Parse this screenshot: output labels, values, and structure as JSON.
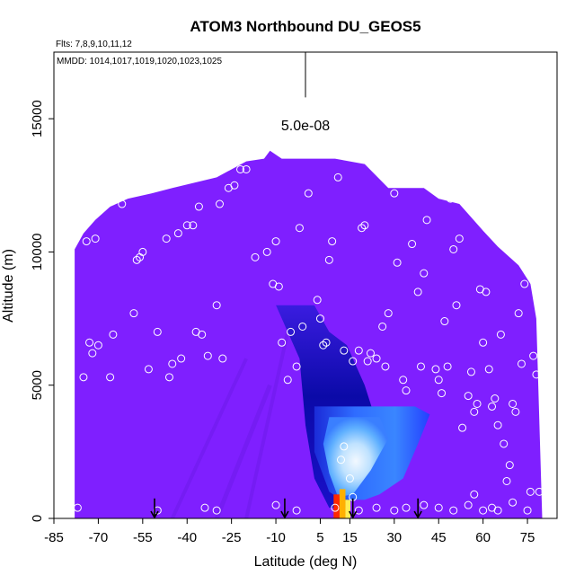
{
  "chart_data": {
    "type": "heatmap",
    "title": "ATOM3 Northbound DU_GEOS5",
    "subtitle_flights": "Flts: 7,8,9,10,11,12",
    "subtitle_dates": "MMDD: 1014,1017,1019,1020,1023,1025",
    "xlabel": "Latitude (deg N)",
    "ylabel": "Altitude (m)",
    "xlim": [
      -85,
      85
    ],
    "ylim": [
      0,
      17500
    ],
    "xticks": [
      -85,
      -70,
      -55,
      -40,
      -25,
      -10,
      5,
      15,
      30,
      45,
      60,
      75
    ],
    "yticks": [
      0,
      5000,
      10000,
      15000
    ],
    "scale_label": "5.0e-08",
    "scale_bar_top": 17500,
    "scale_bar_bottom": 15800,
    "background_color": "#7f1fff",
    "curtain_top": [
      [
        -78,
        10100
      ],
      [
        -75,
        10700
      ],
      [
        -71,
        11200
      ],
      [
        -66,
        11700
      ],
      [
        -60,
        12000
      ],
      [
        -52,
        12200
      ],
      [
        -45,
        12400
      ],
      [
        -30,
        12800
      ],
      [
        -20,
        13400
      ],
      [
        -14,
        13500
      ],
      [
        -12,
        13800
      ],
      [
        -8,
        13500
      ],
      [
        10,
        13500
      ],
      [
        20,
        13300
      ],
      [
        28,
        12400
      ],
      [
        40,
        12400
      ],
      [
        45,
        12000
      ],
      [
        52,
        11800
      ],
      [
        60,
        10800
      ],
      [
        65,
        10200
      ],
      [
        72,
        9500
      ],
      [
        76,
        8800
      ],
      [
        78,
        7500
      ],
      [
        80,
        0
      ]
    ],
    "features": {
      "dark_tongue": [
        [
          -10,
          8000
        ],
        [
          3,
          8000
        ],
        [
          8,
          7000
        ],
        [
          14,
          6500
        ],
        [
          20,
          5000
        ],
        [
          24,
          3600
        ],
        [
          20,
          1500
        ],
        [
          14,
          400
        ],
        [
          8,
          400
        ],
        [
          3,
          1500
        ],
        [
          0,
          3500
        ],
        [
          -2,
          6000
        ]
      ],
      "blue_plume": [
        [
          3,
          4200
        ],
        [
          37,
          4200
        ],
        [
          42,
          3900
        ],
        [
          38,
          2800
        ],
        [
          33,
          1500
        ],
        [
          25,
          900
        ],
        [
          20,
          700
        ],
        [
          12,
          700
        ],
        [
          8,
          1000
        ],
        [
          3,
          2500
        ]
      ],
      "light_core": [
        [
          8,
          3800
        ],
        [
          25,
          3800
        ],
        [
          28,
          3000
        ],
        [
          22,
          1800
        ],
        [
          16,
          900
        ],
        [
          11,
          800
        ],
        [
          8,
          1700
        ],
        [
          6,
          2800
        ]
      ],
      "hot_columns": [
        {
          "x": [
            9.5,
            11.5
          ],
          "y": [
            0,
            900
          ],
          "color": "#ff2800"
        },
        {
          "x": [
            11.5,
            13.5
          ],
          "y": [
            0,
            1100
          ],
          "color": "#ffb000"
        },
        {
          "x": [
            13.5,
            15.2
          ],
          "y": [
            0,
            700
          ],
          "color": "#ffee55"
        }
      ]
    },
    "flight_points": [
      [
        -83,
        7800
      ],
      [
        -80,
        10200
      ],
      [
        -75,
        5300
      ],
      [
        -74,
        10400
      ],
      [
        -73,
        6600
      ],
      [
        -72,
        6200
      ],
      [
        -71,
        10500
      ],
      [
        -70,
        6500
      ],
      [
        -66,
        5300
      ],
      [
        -65,
        6900
      ],
      [
        -62,
        11800
      ],
      [
        -58,
        7700
      ],
      [
        -57,
        9700
      ],
      [
        -56,
        9800
      ],
      [
        -55,
        10000
      ],
      [
        -53,
        5600
      ],
      [
        -50,
        7000
      ],
      [
        -47,
        10500
      ],
      [
        -46,
        5300
      ],
      [
        -45,
        5800
      ],
      [
        -43,
        10700
      ],
      [
        -42,
        6000
      ],
      [
        -40,
        11000
      ],
      [
        -38,
        11000
      ],
      [
        -37,
        7000
      ],
      [
        -36,
        11700
      ],
      [
        -35,
        6900
      ],
      [
        -33,
        6100
      ],
      [
        -30,
        8000
      ],
      [
        -29,
        11800
      ],
      [
        -28,
        6000
      ],
      [
        -26,
        12400
      ],
      [
        -24,
        12500
      ],
      [
        -22,
        13100
      ],
      [
        -20,
        13100
      ],
      [
        -17,
        9800
      ],
      [
        -13,
        10000
      ],
      [
        -11,
        8800
      ],
      [
        -10,
        10400
      ],
      [
        -9,
        8700
      ],
      [
        -8,
        6600
      ],
      [
        -6,
        5200
      ],
      [
        -5,
        7000
      ],
      [
        -3,
        5700
      ],
      [
        -2,
        10900
      ],
      [
        -1,
        7200
      ],
      [
        1,
        12200
      ],
      [
        4,
        8200
      ],
      [
        5,
        7500
      ],
      [
        6,
        6500
      ],
      [
        7,
        6600
      ],
      [
        8,
        9700
      ],
      [
        9,
        10400
      ],
      [
        11,
        12800
      ],
      [
        13,
        6300
      ],
      [
        16,
        5900
      ],
      [
        18,
        6300
      ],
      [
        19,
        10900
      ],
      [
        20,
        11000
      ],
      [
        21,
        5900
      ],
      [
        22,
        6200
      ],
      [
        24,
        6000
      ],
      [
        26,
        7200
      ],
      [
        27,
        5700
      ],
      [
        28,
        7700
      ],
      [
        30,
        12200
      ],
      [
        31,
        9600
      ],
      [
        33,
        5200
      ],
      [
        34,
        4800
      ],
      [
        36,
        10300
      ],
      [
        38,
        8500
      ],
      [
        39,
        5700
      ],
      [
        40,
        9200
      ],
      [
        41,
        11200
      ],
      [
        44,
        5600
      ],
      [
        45,
        5200
      ],
      [
        46,
        4700
      ],
      [
        47,
        7400
      ],
      [
        48,
        5700
      ],
      [
        49,
        12000
      ],
      [
        50,
        10100
      ],
      [
        51,
        8000
      ],
      [
        52,
        10500
      ],
      [
        53,
        3400
      ],
      [
        55,
        4600
      ],
      [
        56,
        5500
      ],
      [
        57,
        4000
      ],
      [
        58,
        4300
      ],
      [
        59,
        8600
      ],
      [
        60,
        6600
      ],
      [
        61,
        8500
      ],
      [
        62,
        5600
      ],
      [
        63,
        4200
      ],
      [
        64,
        4500
      ],
      [
        65,
        3500
      ],
      [
        66,
        6900
      ],
      [
        67,
        2800
      ],
      [
        68,
        1400
      ],
      [
        69,
        2000
      ],
      [
        70,
        4300
      ],
      [
        71,
        4000
      ],
      [
        72,
        7700
      ],
      [
        73,
        5800
      ],
      [
        74,
        8800
      ],
      [
        76,
        1000
      ],
      [
        77,
        6100
      ],
      [
        78,
        5400
      ],
      [
        79,
        1000
      ],
      [
        -77,
        400
      ],
      [
        -50,
        300
      ],
      [
        -34,
        400
      ],
      [
        -30,
        300
      ],
      [
        -10,
        500
      ],
      [
        -3,
        300
      ],
      [
        10,
        400
      ],
      [
        12,
        2200
      ],
      [
        13,
        2700
      ],
      [
        15,
        1500
      ],
      [
        16,
        800
      ],
      [
        18,
        300
      ],
      [
        24,
        400
      ],
      [
        30,
        300
      ],
      [
        34,
        400
      ],
      [
        40,
        500
      ],
      [
        45,
        400
      ],
      [
        50,
        300
      ],
      [
        55,
        500
      ],
      [
        57,
        900
      ],
      [
        60,
        300
      ],
      [
        63,
        400
      ],
      [
        65,
        300
      ],
      [
        70,
        600
      ],
      [
        75,
        300
      ]
    ],
    "marker_latitudes": [
      -51,
      -7,
      16,
      38
    ]
  }
}
